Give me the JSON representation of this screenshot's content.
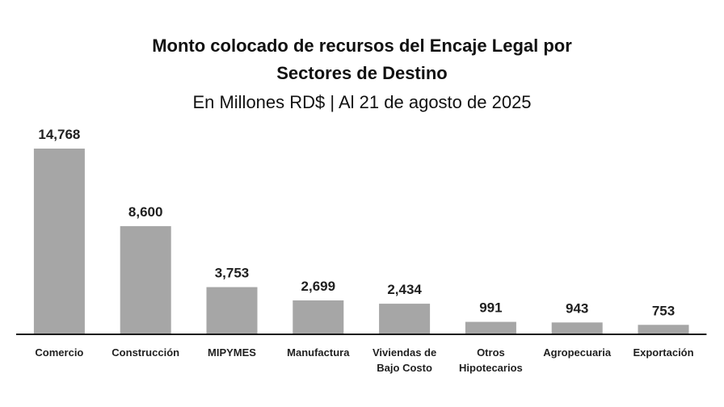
{
  "chart_data": {
    "type": "bar",
    "title_line1": "Monto colocado de recursos del Encaje Legal por",
    "title_line2": "Sectores de Destino",
    "subtitle": "En Millones  RD$ | Al 21 de agosto de 2025",
    "xlabel": "",
    "ylabel": "",
    "ylim": [
      0,
      14768
    ],
    "grid": false,
    "categories": [
      [
        "Comercio"
      ],
      [
        "Construcción"
      ],
      [
        "MIPYMES"
      ],
      [
        "Manufactura"
      ],
      [
        "Viviendas de",
        "Bajo Costo"
      ],
      [
        "Otros",
        "Hipotecarios"
      ],
      [
        "Agropecuaria"
      ],
      [
        "Exportación"
      ]
    ],
    "values": [
      14768,
      8600,
      3753,
      2699,
      2434,
      991,
      943,
      753
    ],
    "value_labels": [
      "14,768",
      "8,600",
      "3,753",
      "2,699",
      "2,434",
      "991",
      "943",
      "753"
    ],
    "colors": {
      "bar": "#a6a6a6",
      "axis": "#1a1a1a",
      "text": "#1f1f1f"
    }
  }
}
